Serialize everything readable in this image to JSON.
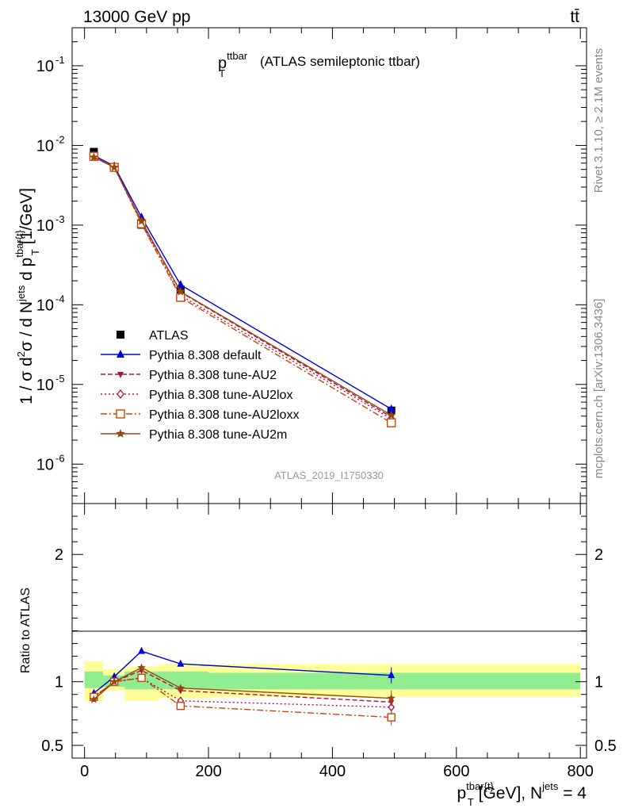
{
  "header": {
    "left": "13000 GeV pp",
    "right": "tt̄"
  },
  "side_labels": {
    "rivet": "Rivet 3.1.10, ≥ 2.1M events",
    "mcplots": "mcplots.cern.ch [arXiv:1306.3436]"
  },
  "watermark": "ATLAS_2019_I1750330",
  "plot_title": {
    "main": "p",
    "sup": "ttbar",
    "sub": "T",
    "note": "(ATLAS semileptonic ttbar)"
  },
  "colors": {
    "ATLAS": "#000000",
    "default": "#0000dd",
    "AU2": "#aa1144",
    "AU2lox": "#aa1144",
    "AU2loxx": "#cc4400",
    "AU2m": "#994411",
    "band_inner": "#90ee90",
    "band_outer": "#ffff99"
  },
  "chart_data": [
    {
      "type": "line",
      "panel": "main",
      "ylabel": "1 / σ d²σ / d N^jets d p^{tbar{t}}_T [1/GeV]",
      "log_y": true,
      "xlim": [
        -20,
        810
      ],
      "ylim": [
        3.2e-07,
        0.3
      ],
      "y_ticks": [
        "10^-6",
        "10^-5",
        "10^-4",
        "10^-3",
        "10^-2",
        "10^-1"
      ],
      "legend_position": "center-left",
      "x": [
        15,
        48,
        92,
        155,
        495
      ],
      "series": [
        {
          "name": "ATLAS",
          "key": "ATLAS",
          "marker": "square",
          "dash": "none",
          "values": [
            0.0083,
            0.0053,
            0.00101,
            0.000155,
            4.7e-06
          ],
          "errors": [
            0.0004,
            0.00025,
            5e-05,
            8e-06,
            4e-07
          ]
        },
        {
          "name": "Pythia 8.308 default",
          "key": "default",
          "marker": "triangle-up",
          "dash": "none",
          "values": [
            0.0075,
            0.0055,
            0.00125,
            0.000178,
            4.9e-06
          ]
        },
        {
          "name": "Pythia 8.308 tune-AU2",
          "key": "AU2",
          "marker": "triangle-down",
          "dash": "6,3",
          "values": [
            0.0073,
            0.0053,
            0.00109,
            0.000144,
            3.9e-06
          ]
        },
        {
          "name": "Pythia 8.308 tune-AU2lox",
          "key": "AU2lox",
          "marker": "diamond",
          "dash": "2,3",
          "values": [
            0.0073,
            0.0053,
            0.00104,
            0.000131,
            3.7e-06
          ]
        },
        {
          "name": "Pythia 8.308 tune-AU2loxx",
          "key": "AU2loxx",
          "marker": "square-open",
          "dash": "8,3,2,3",
          "values": [
            0.0073,
            0.0053,
            0.00104,
            0.000124,
            3.3e-06
          ]
        },
        {
          "name": "Pythia 8.308 tune-AU2m",
          "key": "AU2m",
          "marker": "star",
          "dash": "none",
          "values": [
            0.0071,
            0.0053,
            0.00112,
            0.000146,
            4.1e-06
          ]
        }
      ]
    },
    {
      "type": "line",
      "panel": "ratio",
      "ylabel": "Ratio to ATLAS",
      "xlabel": "p^{tbar{t}}_T [GeV], N^jets = 4",
      "ylim": [
        0.4,
        2.4
      ],
      "y_ticks": [
        "0.5",
        "1",
        "2"
      ],
      "x_ticks": [
        "0",
        "200",
        "400",
        "600",
        "800"
      ],
      "bins": [
        [
          0,
          30
        ],
        [
          30,
          65
        ],
        [
          65,
          120
        ],
        [
          120,
          200
        ],
        [
          200,
          800
        ]
      ],
      "band_outer": [
        [
          0.85,
          1.16
        ],
        [
          0.93,
          1.1
        ],
        [
          0.85,
          1.12
        ],
        [
          0.87,
          1.14
        ],
        [
          0.88,
          1.14
        ]
      ],
      "band_inner": [
        [
          0.95,
          1.08
        ],
        [
          0.96,
          1.05
        ],
        [
          0.94,
          1.08
        ],
        [
          0.94,
          1.08
        ],
        [
          0.94,
          1.07
        ]
      ],
      "x": [
        15,
        48,
        92,
        155,
        495
      ],
      "series": [
        {
          "name": "Pythia 8.308 default",
          "key": "default",
          "values": [
            0.91,
            1.04,
            1.24,
            1.14,
            1.05
          ]
        },
        {
          "name": "Pythia 8.308 tune-AU2",
          "key": "AU2",
          "values": [
            0.88,
            1.0,
            1.09,
            0.93,
            0.84
          ]
        },
        {
          "name": "Pythia 8.308 tune-AU2lox",
          "key": "AU2lox",
          "values": [
            0.88,
            1.0,
            1.03,
            0.85,
            0.8
          ]
        },
        {
          "name": "Pythia 8.308 tune-AU2loxx",
          "key": "AU2loxx",
          "values": [
            0.88,
            1.0,
            1.03,
            0.81,
            0.72
          ]
        },
        {
          "name": "Pythia 8.308 tune-AU2m",
          "key": "AU2m",
          "values": [
            0.86,
            1.0,
            1.11,
            0.95,
            0.87
          ]
        }
      ]
    }
  ]
}
